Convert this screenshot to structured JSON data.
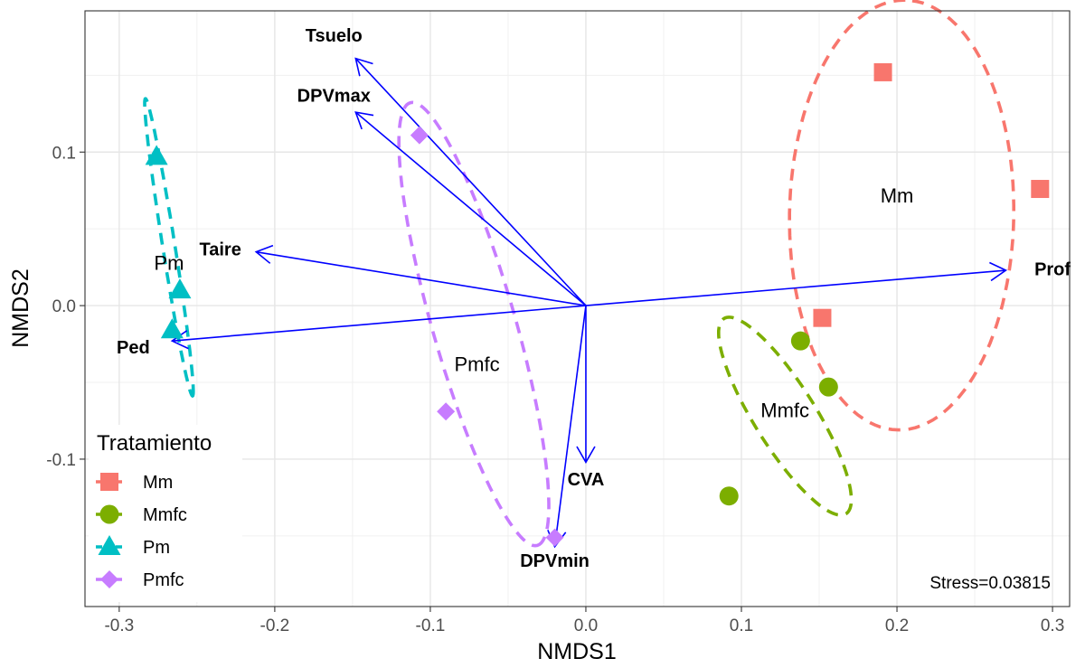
{
  "chart_data": {
    "type": "scatter",
    "subtype": "NMDS ordination biplot",
    "xlabel": "NMDS1",
    "ylabel": "NMDS2",
    "xlim": [
      -0.322,
      0.311
    ],
    "ylim": [
      -0.196,
      0.192
    ],
    "x_ticks": [
      -0.3,
      -0.2,
      -0.1,
      0.0,
      0.1,
      0.2,
      0.3
    ],
    "x_tick_labels": [
      "-0.3",
      "-0.2",
      "-0.1",
      "0.0",
      "0.1",
      "0.2",
      "0.3"
    ],
    "y_ticks": [
      -0.1,
      0.0,
      0.1
    ],
    "y_tick_labels": [
      "-0.1",
      "0.0",
      "0.1"
    ],
    "grid": true,
    "legend": {
      "title": "Tratamiento",
      "position": "bottom-left",
      "entries": [
        "Mm",
        "Mmfc",
        "Pm",
        "Pmfc"
      ]
    },
    "stress_label": "Stress=0.03815",
    "series": [
      {
        "name": "Mm",
        "color": "#F8766D",
        "shape": "square",
        "points": [
          [
            0.191,
            0.152
          ],
          [
            0.292,
            0.076
          ],
          [
            0.152,
            -0.008
          ]
        ],
        "ellipse_label": "Mm",
        "ellipse_label_pos": [
          0.2,
          0.072
        ],
        "ellipse": {
          "center": [
            0.203,
            0.059
          ],
          "rx": 0.14,
          "ry": 0.073,
          "angle_deg": 89
        }
      },
      {
        "name": "Mmfc",
        "color": "#7CAE00",
        "shape": "circle",
        "points": [
          [
            0.138,
            -0.023
          ],
          [
            0.156,
            -0.053
          ],
          [
            0.092,
            -0.124
          ]
        ],
        "ellipse_label": "Mmfc",
        "ellipse_label_pos": [
          0.128,
          -0.068
        ],
        "ellipse": {
          "center": [
            0.128,
            -0.072
          ],
          "rx": 0.075,
          "ry": 0.02,
          "angle_deg": -58
        }
      },
      {
        "name": "Pm",
        "color": "#00BFC4",
        "shape": "triangle",
        "points": [
          [
            -0.276,
            0.097
          ],
          [
            -0.261,
            0.01
          ],
          [
            -0.266,
            -0.016
          ]
        ],
        "ellipse_label": "Pm",
        "ellipse_label_pos": [
          -0.268,
          0.028
        ],
        "ellipse": {
          "center": [
            -0.268,
            0.038
          ],
          "rx": 0.098,
          "ry": 0.004,
          "angle_deg": -81
        }
      },
      {
        "name": "Pmfc",
        "color": "#C77CFF",
        "shape": "diamond",
        "points": [
          [
            -0.107,
            0.111
          ],
          [
            -0.09,
            -0.069
          ],
          [
            -0.02,
            -0.151
          ]
        ],
        "ellipse_label": "Pmfc",
        "ellipse_label_pos": [
          -0.07,
          -0.038
        ],
        "ellipse": {
          "center": [
            -0.072,
            -0.012
          ],
          "rx": 0.15,
          "ry": 0.027,
          "angle_deg": -74
        }
      }
    ],
    "vectors": {
      "color": "#0000FF",
      "origin": [
        0.0,
        0.0
      ],
      "items": [
        {
          "name": "Tsuelo",
          "x": -0.148,
          "y": 0.161,
          "label_x": -0.162,
          "label_y": 0.176
        },
        {
          "name": "DPVmax",
          "x": -0.148,
          "y": 0.126,
          "label_x": -0.162,
          "label_y": 0.137
        },
        {
          "name": "Taire",
          "x": -0.212,
          "y": 0.035,
          "label_x": -0.235,
          "label_y": 0.037
        },
        {
          "name": "Ped",
          "x": -0.266,
          "y": -0.023,
          "label_x": -0.291,
          "label_y": -0.027
        },
        {
          "name": "Prof",
          "x": 0.27,
          "y": 0.023,
          "label_x": 0.3,
          "label_y": 0.024
        },
        {
          "name": "CVA",
          "x": 0.0,
          "y": -0.102,
          "label_x": 0.0,
          "label_y": -0.113
        },
        {
          "name": "DPVmin",
          "x": -0.02,
          "y": -0.157,
          "label_x": -0.02,
          "label_y": -0.166
        }
      ]
    }
  }
}
